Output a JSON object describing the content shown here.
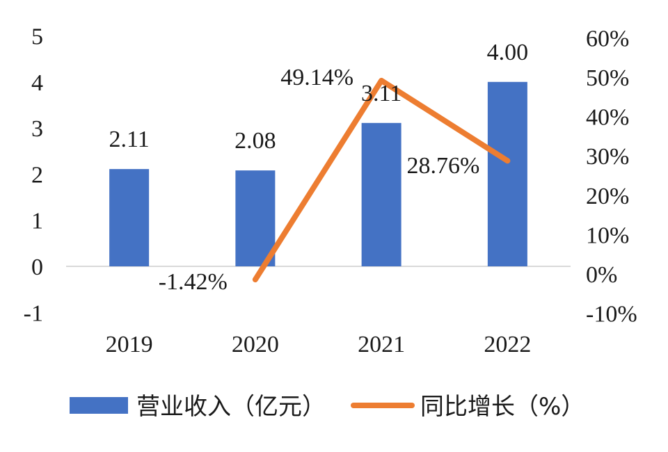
{
  "chart_data": {
    "type": "bar",
    "categories": [
      "2019",
      "2020",
      "2021",
      "2022"
    ],
    "series": [
      {
        "name": "营业收入（亿元）",
        "type": "bar",
        "axis": "left",
        "color": "#4472C4",
        "values": [
          2.11,
          2.08,
          3.11,
          4.0
        ],
        "labels": [
          "2.11",
          "2.08",
          "3.11",
          "4.00"
        ]
      },
      {
        "name": "同比增长（%）",
        "type": "line",
        "axis": "right",
        "color": "#ED7D31",
        "values": [
          null,
          -1.42,
          49.14,
          28.76
        ],
        "labels": [
          "",
          "-1.42%",
          "49.14%",
          "28.76%"
        ]
      }
    ],
    "y_left": {
      "min": -1,
      "max": 5,
      "ticks": [
        5,
        4,
        3,
        2,
        1,
        0,
        -1
      ],
      "tick_labels": [
        "5",
        "4",
        "3",
        "2",
        "1",
        "0",
        "-1"
      ]
    },
    "y_right": {
      "min": -10,
      "max": 60,
      "ticks": [
        60,
        50,
        40,
        30,
        20,
        10,
        0,
        -10
      ],
      "tick_labels": [
        "60%",
        "50%",
        "40%",
        "30%",
        "20%",
        "10%",
        "0%",
        "-10%"
      ]
    },
    "grid": false,
    "legend_position": "bottom"
  }
}
